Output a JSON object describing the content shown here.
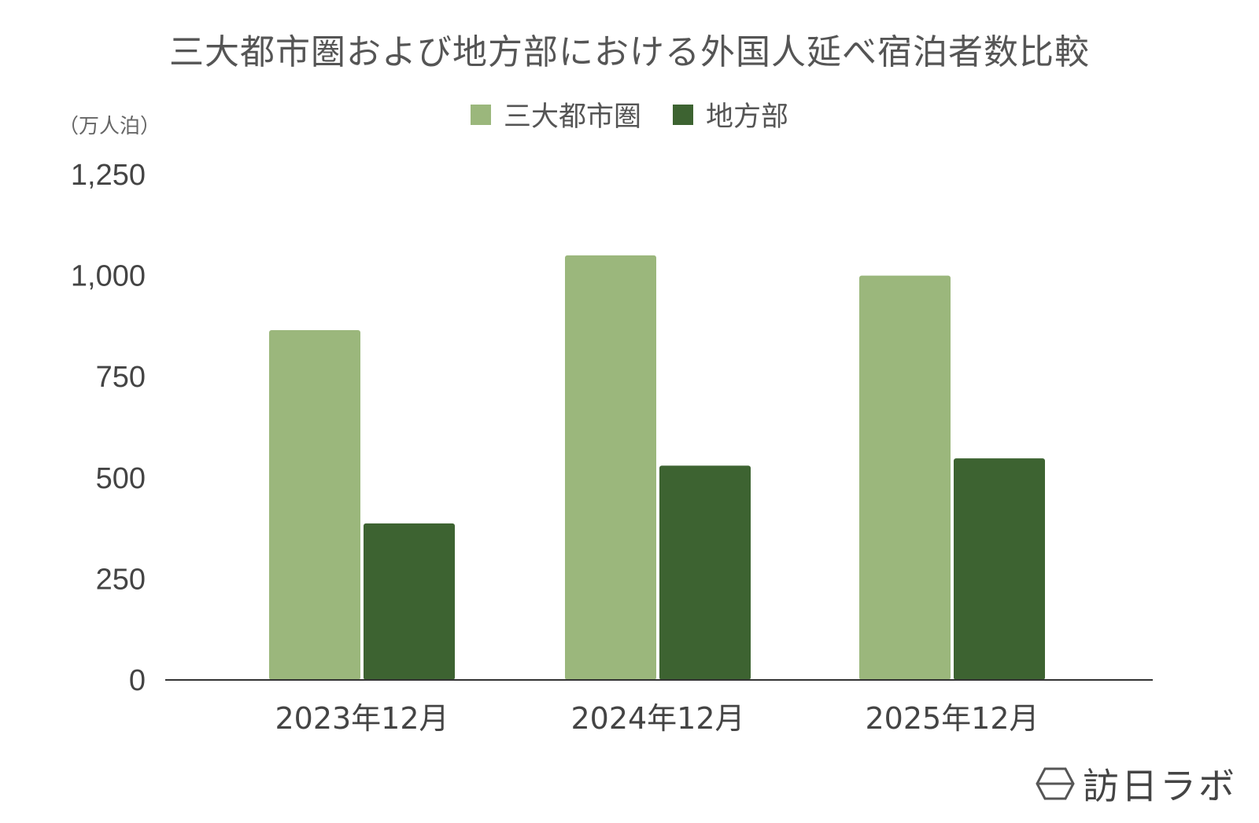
{
  "chart_data": {
    "type": "bar",
    "title": "三大都市圏および地方部における外国人延べ宿泊者数比較",
    "unit_label": "（万人泊）",
    "categories": [
      "2023年12月",
      "2024年12月",
      "2025年12月"
    ],
    "series": [
      {
        "name": "三大都市圏",
        "color": "#9bb77c",
        "values": [
          865,
          1050,
          1000
        ]
      },
      {
        "name": "地方部",
        "color": "#3d6331",
        "values": [
          387,
          530,
          548
        ]
      }
    ],
    "yticks": [
      "0",
      "250",
      "500",
      "750",
      "1,000",
      "1,250"
    ],
    "ylim": [
      0,
      1250
    ],
    "legend_position": "top-center",
    "grid": false
  },
  "brand": {
    "text": "訪日ラボ",
    "icon": "hexagon-logo-icon"
  }
}
